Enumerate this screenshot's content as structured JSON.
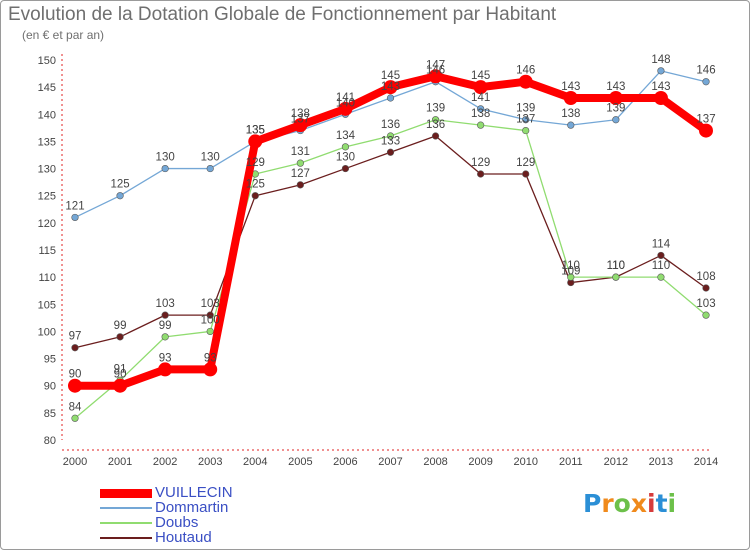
{
  "title": "Evolution de la Dotation Globale de Fonctionnement par Habitant",
  "subtitle": "(en € et par an)",
  "brand": {
    "text": "Proxiti",
    "letters": [
      "P",
      "r",
      "o",
      "x",
      "i",
      "t",
      "i"
    ],
    "letter_colors": [
      "#2b8fd6",
      "#f08a1c",
      "#6cc04a",
      "#f08a1c",
      "#d63b3b",
      "#2b8fd6",
      "#6cc04a"
    ]
  },
  "chart_data": {
    "type": "line",
    "title": "Evolution de la Dotation Globale de Fonctionnement par Habitant",
    "subtitle": "(en € et par an)",
    "xlabel": "",
    "ylabel": "",
    "x": [
      "2000",
      "2001",
      "2002",
      "2003",
      "2004",
      "2005",
      "2006",
      "2007",
      "2008",
      "2009",
      "2010",
      "2011",
      "2012",
      "2013",
      "2014"
    ],
    "ylim": [
      80,
      150
    ],
    "yticks": [
      80,
      85,
      90,
      95,
      100,
      105,
      110,
      115,
      120,
      125,
      130,
      135,
      140,
      145,
      150
    ],
    "grid": false,
    "legend_position": "bottom-left",
    "series": [
      {
        "name": "Houtaud",
        "color": "#6b1e1e",
        "values": [
          97,
          99,
          103,
          103,
          125,
          127,
          130,
          133,
          136,
          129,
          129,
          109,
          110,
          114,
          108
        ]
      },
      {
        "name": "Doubs",
        "color": "#90dc70",
        "values": [
          84,
          91,
          99,
          100,
          129,
          131,
          134,
          136,
          139,
          138,
          137,
          110,
          110,
          110,
          103
        ]
      },
      {
        "name": "Dommartin",
        "color": "#74a7d6",
        "values": [
          121,
          125,
          130,
          130,
          135,
          137,
          140,
          143,
          146,
          141,
          139,
          138,
          139,
          148,
          146
        ]
      },
      {
        "name": "VUILLECIN",
        "color": "#ff0000",
        "values": [
          90,
          90,
          93,
          93,
          135,
          138,
          141,
          145,
          147,
          145,
          146,
          143,
          143,
          143,
          137
        ]
      }
    ]
  }
}
